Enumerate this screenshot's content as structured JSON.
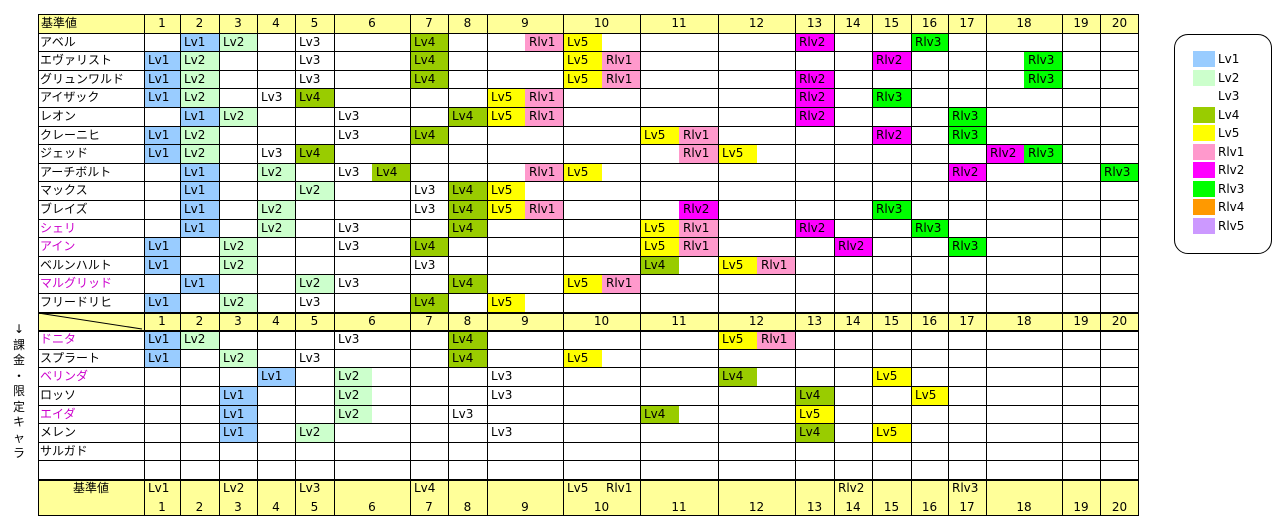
{
  "header_label": "基準値",
  "columns": [
    "1",
    "2",
    "3",
    "4",
    "5",
    "6",
    "7",
    "8",
    "9",
    "10",
    "11",
    "12",
    "13",
    "14",
    "15",
    "16",
    "17",
    "18",
    "19",
    "20"
  ],
  "colors": {
    "Lv1": "#99ccff",
    "Lv2": "#ccffcc",
    "Lv3": "#ffffff",
    "Lv4": "#99cc00",
    "Lv5": "#ffff00",
    "Rlv1": "#ff99cc",
    "Rlv2": "#ff00ff",
    "Rlv3": "#00ff00",
    "Rlv4": "#ff9900",
    "Rlv5": "#cc99ff",
    "header": "#ffff99",
    "purple_name": "#cc00cc"
  },
  "legend": [
    {
      "key": "Lv1",
      "label": "Lv1"
    },
    {
      "key": "Lv2",
      "label": "Lv2"
    },
    {
      "key": "Lv3",
      "label": "Lv3"
    },
    {
      "key": "Lv4",
      "label": "Lv4"
    },
    {
      "key": "Lv5",
      "label": "Lv5"
    },
    {
      "key": "Rlv1",
      "label": "Rlv1"
    },
    {
      "key": "Rlv2",
      "label": "Rlv2"
    },
    {
      "key": "Rlv3",
      "label": "Rlv3"
    },
    {
      "key": "Rlv4",
      "label": "Rlv4"
    },
    {
      "key": "Rlv5",
      "label": "Rlv5"
    }
  ],
  "side_note": [
    "↓",
    "課",
    "金",
    "・",
    "限",
    "定",
    "キ",
    "ャ",
    "ラ"
  ],
  "section1": [
    {
      "name": "アベル",
      "purple": false,
      "cells": [
        [
          2,
          "Lv1"
        ],
        [
          3,
          "Lv2"
        ],
        [
          5,
          "Lv3"
        ],
        [
          7,
          "Lv4"
        ],
        [
          9.5,
          "Rlv1"
        ],
        [
          10,
          "Lv5"
        ],
        [
          13,
          "Rlv2"
        ],
        [
          16,
          "Rlv3"
        ]
      ]
    },
    {
      "name": "エヴァリスト",
      "purple": false,
      "cells": [
        [
          1,
          "Lv1"
        ],
        [
          2,
          "Lv2"
        ],
        [
          5,
          "Lv3"
        ],
        [
          7,
          "Lv4"
        ],
        [
          10,
          "Lv5"
        ],
        [
          10.5,
          "Rlv1"
        ],
        [
          15,
          "Rlv2"
        ],
        [
          18.5,
          "Rlv3"
        ]
      ]
    },
    {
      "name": "グリュンワルド",
      "purple": false,
      "cells": [
        [
          1,
          "Lv1"
        ],
        [
          2,
          "Lv2"
        ],
        [
          5,
          "Lv3"
        ],
        [
          7,
          "Lv4"
        ],
        [
          10,
          "Lv5"
        ],
        [
          10.5,
          "Rlv1"
        ],
        [
          13,
          "Rlv2"
        ],
        [
          18.5,
          "Rlv3"
        ]
      ]
    },
    {
      "name": "アイザック",
      "purple": false,
      "cells": [
        [
          1,
          "Lv1"
        ],
        [
          2,
          "Lv2"
        ],
        [
          4,
          "Lv3"
        ],
        [
          5,
          "Lv4"
        ],
        [
          9,
          "Lv5"
        ],
        [
          9.5,
          "Rlv1"
        ],
        [
          13,
          "Rlv2"
        ],
        [
          15,
          "Rlv3"
        ]
      ]
    },
    {
      "name": "レオン",
      "purple": false,
      "cells": [
        [
          2,
          "Lv1"
        ],
        [
          3,
          "Lv2"
        ],
        [
          6,
          "Lv3"
        ],
        [
          8,
          "Lv4"
        ],
        [
          9,
          "Lv5"
        ],
        [
          9.5,
          "Rlv1"
        ],
        [
          13,
          "Rlv2"
        ],
        [
          17,
          "Rlv3"
        ]
      ]
    },
    {
      "name": "クレーニヒ",
      "purple": false,
      "cells": [
        [
          1,
          "Lv1"
        ],
        [
          2,
          "Lv2"
        ],
        [
          6,
          "Lv3"
        ],
        [
          7,
          "Lv4"
        ],
        [
          11,
          "Lv5"
        ],
        [
          11.5,
          "Rlv1"
        ],
        [
          15,
          "Rlv2"
        ],
        [
          17,
          "Rlv3"
        ]
      ]
    },
    {
      "name": "ジェッド",
      "purple": false,
      "cells": [
        [
          1,
          "Lv1"
        ],
        [
          2,
          "Lv2"
        ],
        [
          4,
          "Lv3"
        ],
        [
          5,
          "Lv4"
        ],
        [
          11.5,
          "Rlv1"
        ],
        [
          12,
          "Lv5"
        ],
        [
          18,
          "Rlv2"
        ],
        [
          18.5,
          "Rlv3"
        ]
      ]
    },
    {
      "name": "アーチボルト",
      "purple": false,
      "cells": [
        [
          2,
          "Lv1"
        ],
        [
          4,
          "Lv2"
        ],
        [
          6,
          "Lv3"
        ],
        [
          6.5,
          "Lv4"
        ],
        [
          9.5,
          "Rlv1"
        ],
        [
          10,
          "Lv5"
        ],
        [
          17,
          "Rlv2"
        ],
        [
          20,
          "Rlv3"
        ]
      ]
    },
    {
      "name": "マックス",
      "purple": false,
      "cells": [
        [
          2,
          "Lv1"
        ],
        [
          5,
          "Lv2"
        ],
        [
          7,
          "Lv3"
        ],
        [
          8,
          "Lv4"
        ],
        [
          9,
          "Lv5"
        ]
      ]
    },
    {
      "name": "ブレイズ",
      "purple": false,
      "cells": [
        [
          2,
          "Lv1"
        ],
        [
          4,
          "Lv2"
        ],
        [
          7,
          "Lv3"
        ],
        [
          8,
          "Lv4"
        ],
        [
          9,
          "Lv5"
        ],
        [
          9.5,
          "Rlv1"
        ],
        [
          11.5,
          "Rlv2"
        ],
        [
          15,
          "Rlv3"
        ]
      ]
    },
    {
      "name": "シェリ",
      "purple": true,
      "cells": [
        [
          2,
          "Lv1"
        ],
        [
          4,
          "Lv2"
        ],
        [
          6,
          "Lv3"
        ],
        [
          8,
          "Lv4"
        ],
        [
          11,
          "Lv5"
        ],
        [
          11.5,
          "Rlv1"
        ],
        [
          13,
          "Rlv2"
        ],
        [
          16,
          "Rlv3"
        ]
      ]
    },
    {
      "name": "アイン",
      "purple": true,
      "cells": [
        [
          1,
          "Lv1"
        ],
        [
          3,
          "Lv2"
        ],
        [
          6,
          "Lv3"
        ],
        [
          7,
          "Lv4"
        ],
        [
          11,
          "Lv5"
        ],
        [
          11.5,
          "Rlv1"
        ],
        [
          14,
          "Rlv2"
        ],
        [
          17,
          "Rlv3"
        ]
      ]
    },
    {
      "name": "ベルンハルト",
      "purple": false,
      "cells": [
        [
          1,
          "Lv1"
        ],
        [
          3,
          "Lv2"
        ],
        [
          7,
          "Lv3"
        ],
        [
          11,
          "Lv4"
        ],
        [
          12,
          "Lv5"
        ],
        [
          12.5,
          "Rlv1"
        ]
      ]
    },
    {
      "name": "マルグリッド",
      "purple": true,
      "cells": [
        [
          2,
          "Lv1"
        ],
        [
          5,
          "Lv2"
        ],
        [
          6,
          "Lv3"
        ],
        [
          8,
          "Lv4"
        ],
        [
          10,
          "Lv5"
        ],
        [
          10.5,
          "Rlv1"
        ]
      ]
    },
    {
      "name": "フリードリヒ",
      "purple": false,
      "cells": [
        [
          1,
          "Lv1"
        ],
        [
          3,
          "Lv2"
        ],
        [
          5,
          "Lv3"
        ],
        [
          7,
          "Lv4"
        ],
        [
          9,
          "Lv5"
        ]
      ]
    }
  ],
  "section2": [
    {
      "name": "ドニタ",
      "purple": true,
      "cells": [
        [
          1,
          "Lv1"
        ],
        [
          2,
          "Lv2"
        ],
        [
          6,
          "Lv3"
        ],
        [
          8,
          "Lv4"
        ],
        [
          12,
          "Lv5"
        ],
        [
          12.5,
          "Rlv1"
        ]
      ]
    },
    {
      "name": "スプラート",
      "purple": false,
      "cells": [
        [
          1,
          "Lv1"
        ],
        [
          3,
          "Lv2"
        ],
        [
          5,
          "Lv3"
        ],
        [
          8,
          "Lv4"
        ],
        [
          10,
          "Lv5"
        ]
      ]
    },
    {
      "name": "ベリンダ",
      "purple": true,
      "cells": [
        [
          4,
          "Lv1"
        ],
        [
          6,
          "Lv2"
        ],
        [
          9,
          "Lv3"
        ],
        [
          12,
          "Lv4"
        ],
        [
          15,
          "Lv5"
        ]
      ]
    },
    {
      "name": "ロッソ",
      "purple": false,
      "cells": [
        [
          3,
          "Lv1"
        ],
        [
          6,
          "Lv2"
        ],
        [
          9,
          "Lv3"
        ],
        [
          13,
          "Lv4"
        ],
        [
          16,
          "Lv5"
        ]
      ]
    },
    {
      "name": "エイダ",
      "purple": true,
      "cells": [
        [
          3,
          "Lv1"
        ],
        [
          6,
          "Lv2"
        ],
        [
          8,
          "Lv3"
        ],
        [
          11,
          "Lv4"
        ],
        [
          13,
          "Lv5"
        ]
      ]
    },
    {
      "name": "メレン",
      "purple": false,
      "cells": [
        [
          3,
          "Lv1"
        ],
        [
          5,
          "Lv2"
        ],
        [
          9,
          "Lv3"
        ],
        [
          13,
          "Lv4"
        ],
        [
          15,
          "Lv5"
        ]
      ]
    },
    {
      "name": "サルガド",
      "purple": false,
      "cells": []
    },
    {
      "name": "",
      "purple": false,
      "cells": []
    }
  ],
  "footer": {
    "label": "基準値",
    "marks": [
      [
        1,
        "Lv1"
      ],
      [
        3,
        "Lv2"
      ],
      [
        5,
        "Lv3"
      ],
      [
        7,
        "Lv4"
      ],
      [
        10,
        "Lv5"
      ],
      [
        10.5,
        "Rlv1"
      ],
      [
        14,
        "Rlv2"
      ],
      [
        17,
        "Rlv3"
      ]
    ]
  }
}
